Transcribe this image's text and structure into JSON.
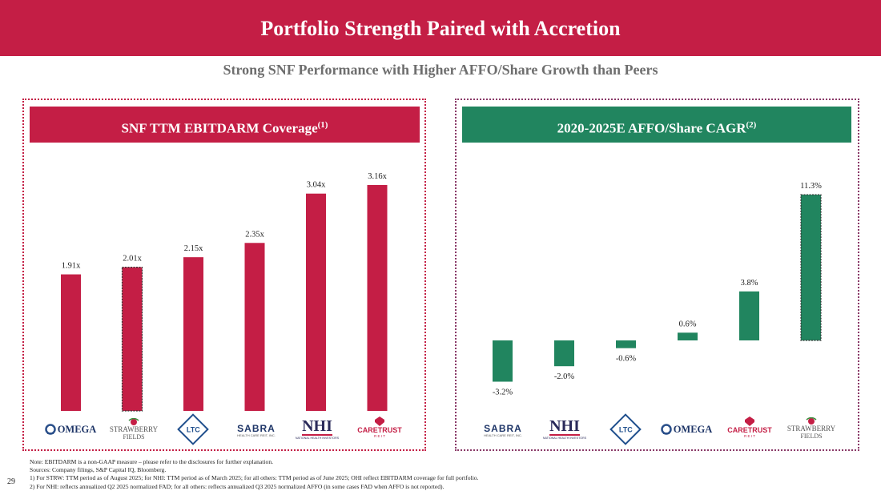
{
  "header": {
    "title": "Portfolio Strength Paired with Accretion"
  },
  "subtitle": "Strong SNF Performance with Higher AFFO/Share Growth than Peers",
  "left_panel": {
    "title": "SNF TTM EBITDARM Coverage",
    "title_sup": "(1)"
  },
  "right_panel": {
    "title": "2020-2025E AFFO/Share CAGR",
    "title_sup": "(2)"
  },
  "logos": {
    "omega": "OMEGA",
    "strawberry_top": "STRAWBERRY",
    "strawberry_bottom": "FIELDS",
    "ltc": "LTC",
    "sabra": "SABRA",
    "sabra_tag": "HEALTH CARE REIT, INC.",
    "nhi": "NHI",
    "nhi_tag": "NATIONAL HEALTH INVESTORS",
    "caretrust": "CARETRUST",
    "caretrust_tag": "R E I T"
  },
  "chart_data": [
    {
      "type": "bar",
      "title": "SNF TTM EBITDARM Coverage(1)",
      "categories": [
        "Omega",
        "Strawberry Fields",
        "LTC",
        "Sabra",
        "NHI",
        "CareTrust"
      ],
      "values": [
        1.91,
        2.01,
        2.15,
        2.35,
        3.04,
        3.16
      ],
      "value_labels": [
        "1.91x",
        "2.01x",
        "2.15x",
        "2.35x",
        "3.04x",
        "3.16x"
      ],
      "highlight_index": 1,
      "color": "#c41e45",
      "ylim": [
        0,
        3.16
      ],
      "xlabel": "",
      "ylabel": ""
    },
    {
      "type": "bar",
      "title": "2020-2025E AFFO/Share CAGR(2)",
      "categories": [
        "Sabra",
        "NHI",
        "LTC",
        "Omega",
        "CareTrust",
        "Strawberry Fields"
      ],
      "values": [
        -3.2,
        -2.0,
        -0.6,
        0.6,
        3.8,
        11.3
      ],
      "value_labels": [
        "-3.2%",
        "-2.0%",
        "-0.6%",
        "0.6%",
        "3.8%",
        "11.3%"
      ],
      "highlight_index": 5,
      "color": "#21855f",
      "ylim": [
        -3.2,
        11.3
      ],
      "xlabel": "",
      "ylabel": ""
    }
  ],
  "footnotes": [
    "Note: EBITDARM is a non-GAAP measure – please refer to the disclosures for further explanation.",
    "Sources: Company filings, S&P Capital IQ, Bloomberg.",
    "1) For STRW: TTM period as of August 2025; for NHI: TTM period as of March 2025; for all others: TTM period as of June 2025; OHI reflect EBITDARM coverage for full portfolio.",
    "2) For NHI: reflects annualized Q2 2025 normalized FAD; for all others: reflects annualized Q3 2025 normalized AFFO (in some cases FAD when AFFO is not reported)."
  ],
  "page_number": "29"
}
